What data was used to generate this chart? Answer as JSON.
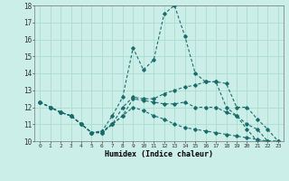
{
  "xlabel": "Humidex (Indice chaleur)",
  "background_color": "#cceee8",
  "grid_color": "#aaddcc",
  "line_color": "#1a6b6b",
  "xlim": [
    -0.5,
    23.5
  ],
  "ylim": [
    10,
    18
  ],
  "yticks": [
    10,
    11,
    12,
    13,
    14,
    15,
    16,
    17,
    18
  ],
  "xticks": [
    0,
    1,
    2,
    3,
    4,
    5,
    6,
    7,
    8,
    9,
    10,
    11,
    12,
    13,
    14,
    15,
    16,
    17,
    18,
    19,
    20,
    21,
    22,
    23
  ],
  "lines": [
    {
      "x": [
        0,
        1,
        2,
        3,
        4,
        5,
        6,
        7,
        8,
        9,
        10,
        11,
        12,
        13,
        14,
        15,
        16,
        17,
        18,
        19,
        20,
        21,
        22,
        23
      ],
      "y": [
        12.3,
        12.0,
        11.7,
        11.5,
        11.0,
        10.5,
        10.6,
        11.5,
        12.6,
        15.5,
        14.2,
        14.8,
        17.5,
        18.0,
        16.2,
        14.0,
        13.5,
        13.5,
        12.0,
        11.5,
        10.7,
        10.0,
        10.0,
        null
      ]
    },
    {
      "x": [
        0,
        1,
        2,
        3,
        4,
        5,
        6,
        7,
        8,
        9,
        10,
        11,
        12,
        13,
        14,
        15,
        16,
        17,
        18,
        19,
        20,
        21,
        22,
        23
      ],
      "y": [
        12.3,
        12.0,
        11.7,
        11.5,
        11.0,
        10.5,
        10.6,
        11.0,
        12.0,
        12.6,
        12.5,
        12.5,
        12.8,
        13.0,
        13.2,
        13.3,
        13.5,
        13.5,
        13.4,
        12.0,
        12.0,
        11.3,
        10.7,
        10.0
      ]
    },
    {
      "x": [
        0,
        1,
        2,
        3,
        4,
        5,
        6,
        7,
        8,
        9,
        10,
        11,
        12,
        13,
        14,
        15,
        16,
        17,
        18,
        19,
        20,
        21,
        22,
        23
      ],
      "y": [
        12.3,
        12.0,
        11.7,
        11.5,
        11.0,
        10.5,
        10.5,
        11.0,
        11.5,
        12.5,
        12.4,
        12.3,
        12.2,
        12.2,
        12.3,
        12.0,
        12.0,
        12.0,
        11.7,
        11.5,
        11.0,
        10.7,
        10.0,
        10.0
      ]
    },
    {
      "x": [
        0,
        1,
        2,
        3,
        4,
        5,
        6,
        7,
        8,
        9,
        10,
        11,
        12,
        13,
        14,
        15,
        16,
        17,
        18,
        19,
        20,
        21,
        22,
        23
      ],
      "y": [
        12.3,
        12.0,
        11.7,
        11.5,
        11.0,
        10.5,
        10.5,
        11.0,
        11.5,
        12.0,
        11.8,
        11.5,
        11.3,
        11.0,
        10.8,
        10.7,
        10.6,
        10.5,
        10.4,
        10.3,
        10.2,
        10.1,
        10.0,
        10.0
      ]
    }
  ]
}
